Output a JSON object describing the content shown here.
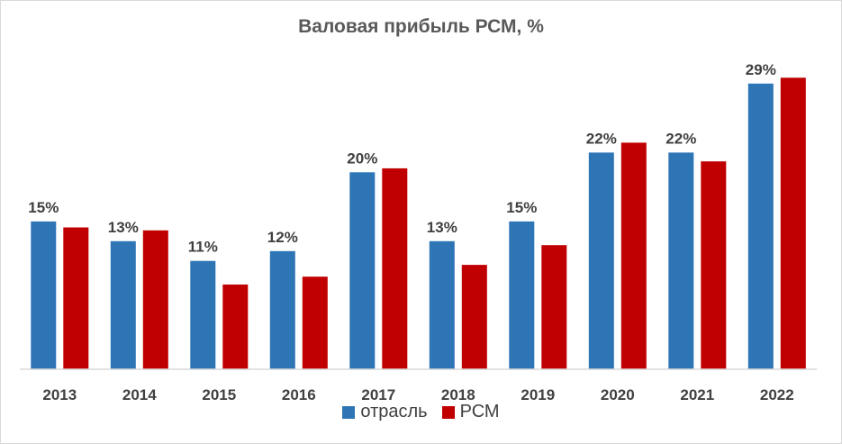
{
  "chart_data": {
    "type": "bar",
    "title": "Валовая прибыль РСМ, %",
    "categories": [
      "2013",
      "2014",
      "2015",
      "2016",
      "2017",
      "2018",
      "2019",
      "2020",
      "2021",
      "2022"
    ],
    "series": [
      {
        "name": "отрасль",
        "color": "#2e75b6",
        "values": [
          15,
          13,
          11,
          12,
          20,
          13,
          15,
          22,
          22,
          29
        ],
        "labels": [
          "15%",
          "13%",
          "11%",
          "12%",
          "20%",
          "13%",
          "15%",
          "22%",
          "22%",
          "29%"
        ]
      },
      {
        "name": "РСМ",
        "color": "#c00000",
        "values": [
          14.4,
          14.1,
          8.6,
          9.4,
          20.4,
          10.6,
          12.6,
          23.0,
          21.1,
          29.6
        ]
      }
    ],
    "ylim": [
      0,
      32
    ],
    "grid": false,
    "legend_position": "bottom"
  }
}
